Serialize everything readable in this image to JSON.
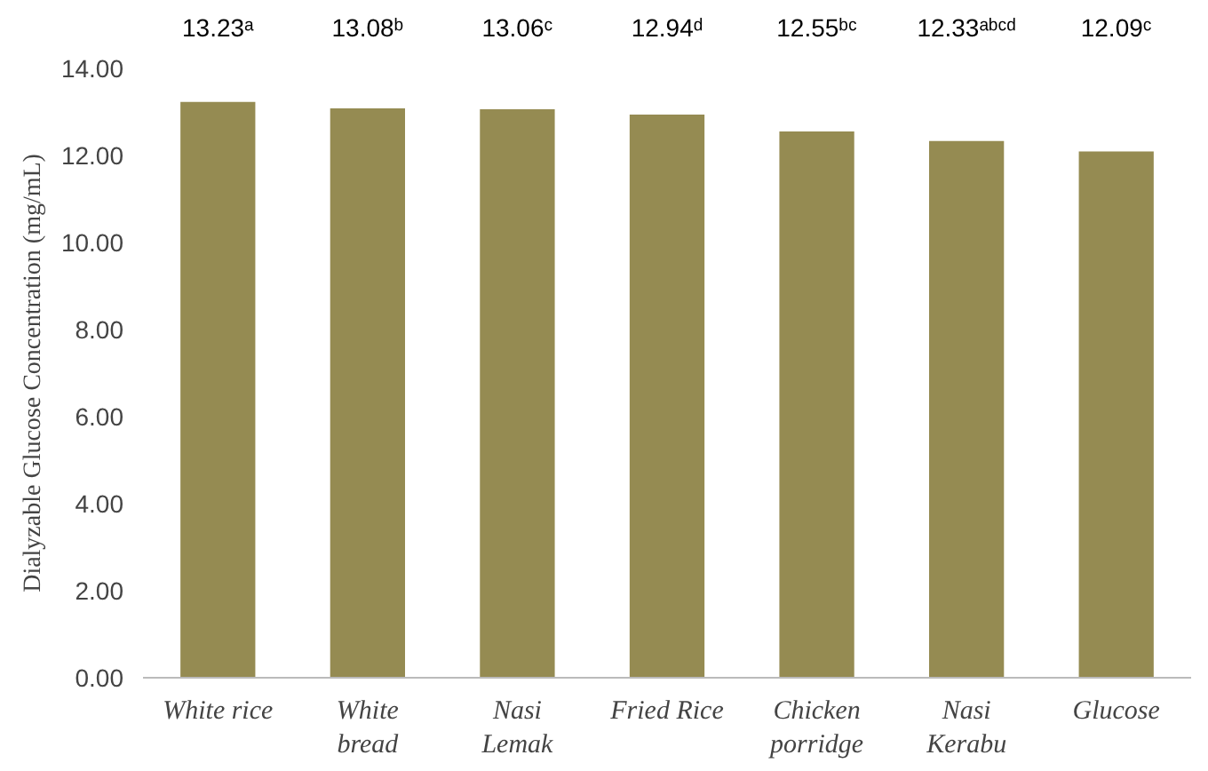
{
  "chart_data": {
    "type": "bar",
    "ylabel": "Dialyzable Glucose Concentration (mg/mL)",
    "categories": [
      "White rice",
      "White\nbread",
      "Nasi\nLemak",
      "Fried Rice",
      "Chicken\nporridge",
      "Nasi\nKerabu",
      "Glucose"
    ],
    "values": [
      13.23,
      13.08,
      13.06,
      12.94,
      12.55,
      12.33,
      12.09
    ],
    "value_labels": [
      "13.23ᵃ",
      "13.08ᵇ",
      "13.06ᶜ",
      "12.94ᵈ",
      "12.55ᵇᶜ",
      "12.33ᵃᵇᶜᵈ",
      "12.09ᶜ"
    ],
    "color": "#958b52",
    "ylim": [
      0,
      14
    ],
    "yticks": [
      {
        "value": 0,
        "label": "0.00"
      },
      {
        "value": 2,
        "label": "2.00"
      },
      {
        "value": 4,
        "label": "4.00"
      },
      {
        "value": 6,
        "label": "6.00"
      },
      {
        "value": 8,
        "label": "8.00"
      },
      {
        "value": 10,
        "label": "10.00"
      },
      {
        "value": 12,
        "label": "12.00"
      },
      {
        "value": 14,
        "label": "14.00"
      }
    ],
    "grid": false
  }
}
